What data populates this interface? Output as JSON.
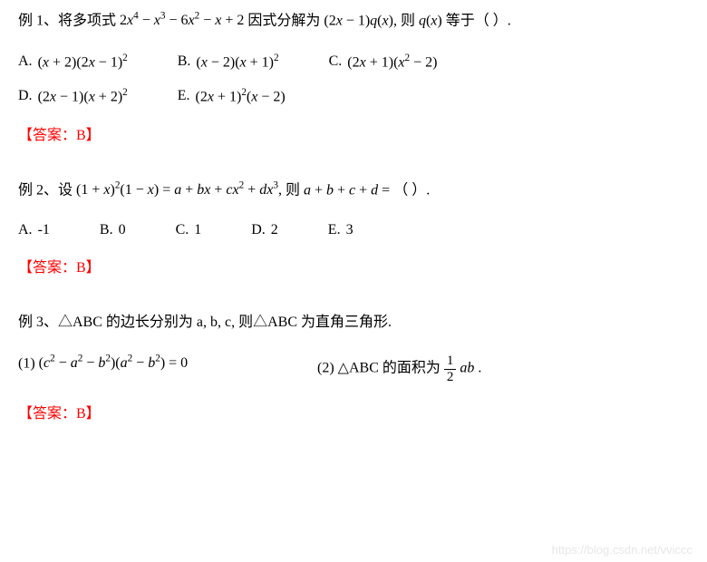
{
  "q1": {
    "stem_pre": "例 1、将多项式",
    "stem_expr": "2<i>x</i><sup>4</sup> − <i>x</i><sup>3</sup> − 6<i>x</i><sup>2</sup> − <i>x</i> + 2",
    "stem_mid": "因式分解为",
    "stem_expr2": "(2<i>x</i> − 1)<i>q</i>(<i>x</i>),",
    "stem_post": "则",
    "stem_expr3": "<i>q</i>(<i>x</i>)",
    "stem_end": "等于（  ）.",
    "opts": {
      "A": "(<i>x</i> + 2)(2<i>x</i> − 1)<sup>2</sup>",
      "B": "(<i>x</i> − 2)(<i>x</i> + 1)<sup>2</sup>",
      "C": "(2<i>x</i> + 1)(<i>x</i><sup>2</sup> − 2)",
      "D": "(2<i>x</i> − 1)(<i>x</i> + 2)<sup>2</sup>",
      "E": "(2<i>x</i> + 1)<sup>2</sup>(<i>x</i> − 2)"
    },
    "answer": "【答案：B】"
  },
  "q2": {
    "stem_pre": "例 2、设",
    "stem_expr": "(1 + <i>x</i>)<sup>2</sup>(1 − <i>x</i>) = <i>a</i> + <i>b</i><i>x</i> + <i>c</i><i>x</i><sup>2</sup> + <i>d</i><i>x</i><sup>3</sup>,",
    "stem_mid": "则",
    "stem_expr2": "<i>a</i> + <i>b</i> + <i>c</i> + <i>d</i> =",
    "stem_end": "（  ）.",
    "opts": {
      "A": "-1",
      "B": "0",
      "C": "1",
      "D": "2",
      "E": "3"
    },
    "answer": "【答案：B】"
  },
  "q3": {
    "stem": "例 3、△ABC 的边长分别为 a, b, c, 则△ABC 为直角三角形.",
    "sub1_label": "(1)",
    "sub1_expr": "(<i>c</i><sup>2</sup> − <i>a</i><sup>2</sup> − <i>b</i><sup>2</sup>)(<i>a</i><sup>2</sup> − <i>b</i><sup>2</sup>) = 0",
    "sub2_label": "(2)",
    "sub2_text": "△ABC 的面积为",
    "sub2_frac_num": "1",
    "sub2_frac_den": "2",
    "sub2_post": "<i>a</i><i>b</i> .",
    "answer": "【答案：B】"
  },
  "watermark": "https://blog.csdn.net/vviccc"
}
